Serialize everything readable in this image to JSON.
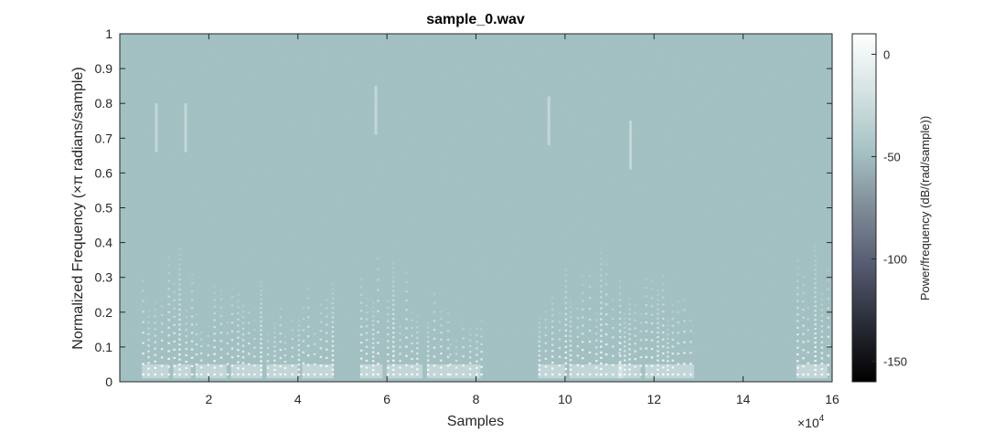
{
  "chart_data": {
    "type": "heatmap",
    "title": "sample_0.wav",
    "xlabel": "Samples",
    "ylabel": "Normalized Frequency (×π radians/sample)",
    "x_exponent_label": "×10",
    "x_exponent_power": "4",
    "xlim": [
      0,
      16
    ],
    "ylim": [
      0,
      1
    ],
    "x_ticks": [
      2,
      4,
      6,
      8,
      10,
      12,
      14,
      16
    ],
    "x_tick_labels": [
      "2",
      "4",
      "6",
      "8",
      "10",
      "12",
      "14",
      "16"
    ],
    "y_ticks": [
      0,
      0.1,
      0.2,
      0.3,
      0.4,
      0.5,
      0.6,
      0.7,
      0.8,
      0.9,
      1
    ],
    "y_tick_labels": [
      "0",
      "0.1",
      "0.2",
      "0.3",
      "0.4",
      "0.5",
      "0.6",
      "0.7",
      "0.8",
      "0.9",
      "1"
    ],
    "colorbar": {
      "label": "Power/frequency (dB/(rad/sample))",
      "range": [
        -160,
        10
      ],
      "ticks": [
        0,
        -50,
        -100,
        -150
      ],
      "tick_labels": [
        "0",
        "-50",
        "-100",
        "-150"
      ],
      "colors": [
        "#000000",
        "#2a2c38",
        "#545a70",
        "#7f8c98",
        "#a8c4c6",
        "#d3e2e2",
        "#ffffff"
      ]
    },
    "background_color": "#a0bfc1",
    "energy_segments": [
      {
        "x": [
          0.5,
          1.1
        ],
        "fmax": 0.38,
        "top": 0.8
      },
      {
        "x": [
          1.2,
          1.6
        ],
        "fmax": 0.42,
        "top": 0.8
      },
      {
        "x": [
          1.7,
          2.4
        ],
        "fmax": 0.3
      },
      {
        "x": [
          2.5,
          3.2
        ],
        "fmax": 0.3
      },
      {
        "x": [
          3.3,
          4.0
        ],
        "fmax": 0.25
      },
      {
        "x": [
          4.1,
          4.8
        ],
        "fmax": 0.3
      },
      {
        "x": [
          5.4,
          5.9
        ],
        "fmax": 0.38,
        "top": 0.85
      },
      {
        "x": [
          6.0,
          6.8
        ],
        "fmax": 0.35
      },
      {
        "x": [
          6.9,
          7.4
        ],
        "fmax": 0.3
      },
      {
        "x": [
          7.4,
          8.1
        ],
        "fmax": 0.2
      },
      {
        "x": [
          9.4,
          10.0
        ],
        "fmax": 0.35,
        "top": 0.82
      },
      {
        "x": [
          10.1,
          11.3
        ],
        "fmax": 0.38
      },
      {
        "x": [
          11.2,
          11.7
        ],
        "fmax": 0.3,
        "top": 0.75
      },
      {
        "x": [
          11.8,
          12.9
        ],
        "fmax": 0.32
      },
      {
        "x": [
          15.2,
          15.9
        ],
        "fmax": 0.4
      }
    ]
  }
}
